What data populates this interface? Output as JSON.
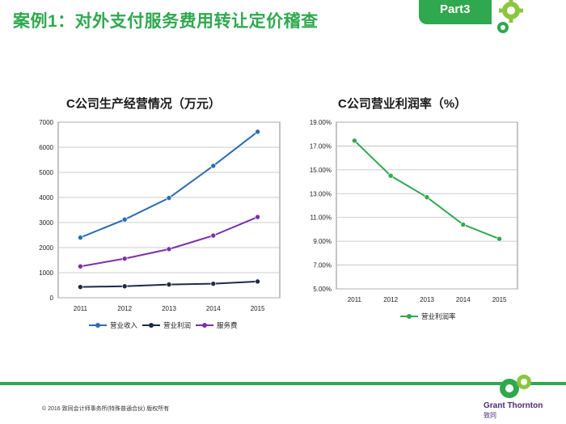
{
  "header": {
    "title": "案例1：对外支付服务费用转让定价稽查",
    "part_label": "Part3"
  },
  "footer": {
    "copyright": "© 2016 致同会计师事务所(特殊普通合伙) 版权所有",
    "logo_text": "Grant Thornton",
    "logo_sub": "致同"
  },
  "colors": {
    "brand_green": "#2fa84f",
    "logo_purple": "#4a2a7a"
  },
  "chart_data": [
    {
      "type": "line",
      "title": "C公司生产经营情况（万元）",
      "xlabel": "",
      "ylabel": "",
      "categories": [
        "2011",
        "2012",
        "2013",
        "2014",
        "2015"
      ],
      "ylim": [
        0,
        7000
      ],
      "yticks": [
        0,
        1000,
        2000,
        3000,
        4000,
        5000,
        6000,
        7000
      ],
      "ytick_labels": [
        "0",
        "1000",
        "2000",
        "3000",
        "4000",
        "5000",
        "6000",
        "7000"
      ],
      "grid": true,
      "legend_position": "bottom",
      "series": [
        {
          "name": "营业收入",
          "color": "#2b6cb0",
          "values": [
            2400,
            3120,
            3980,
            5260,
            6620
          ]
        },
        {
          "name": "营业利润",
          "color": "#1e2a44",
          "values": [
            430,
            460,
            530,
            560,
            650
          ]
        },
        {
          "name": "服务费",
          "color": "#7b2fa8",
          "values": [
            1250,
            1560,
            1940,
            2480,
            3220
          ]
        }
      ]
    },
    {
      "type": "line",
      "title": "C公司营业利润率（%）",
      "xlabel": "",
      "ylabel": "",
      "categories": [
        "2011",
        "2012",
        "2013",
        "2014",
        "2015"
      ],
      "ylim": [
        5,
        19
      ],
      "yticks": [
        5,
        7,
        9,
        11,
        13,
        15,
        17,
        19
      ],
      "ytick_labels": [
        "5.00%",
        "7.00%",
        "9.00%",
        "11.00%",
        "13.00%",
        "15.00%",
        "17.00%",
        "19.00%"
      ],
      "grid": true,
      "legend_position": "bottom",
      "series": [
        {
          "name": "营业利润率",
          "color": "#2fa84f",
          "values": [
            17.45,
            14.5,
            12.7,
            10.4,
            9.2
          ]
        }
      ]
    }
  ]
}
